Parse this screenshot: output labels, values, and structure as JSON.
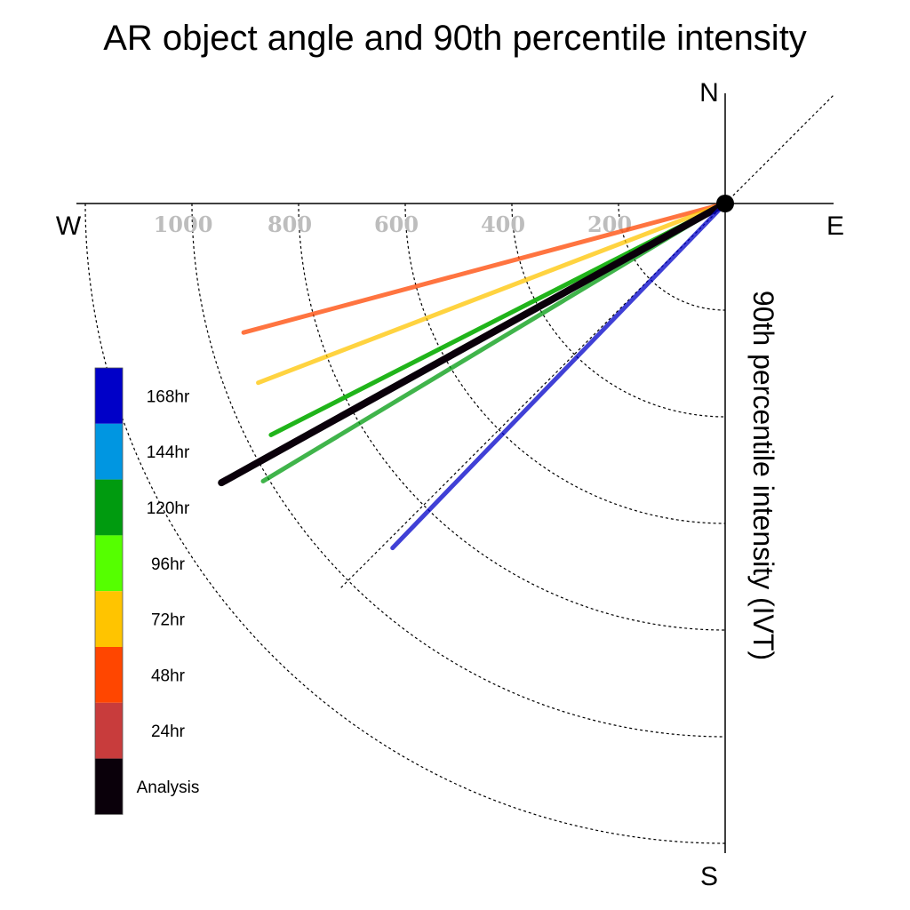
{
  "chart_data": {
    "type": "polar-vector",
    "title": "AR object angle and 90th percentile intensity",
    "radial_label": "90th percentile intensity (IVT)",
    "compass": {
      "north": "N",
      "south": "S",
      "east": "E",
      "west": "W"
    },
    "radial_ticks": [
      200,
      400,
      600,
      800,
      1000
    ],
    "radial_tick_labels": [
      "200",
      "400",
      "600",
      "800",
      "1000"
    ],
    "rmax": 1200,
    "grid": true,
    "reference_angle_deg": 45,
    "legend": {
      "placement": "left",
      "entries": [
        {
          "label": "168hr",
          "color": "#0000c8"
        },
        {
          "label": "144hr",
          "color": "#0096e1"
        },
        {
          "label": "120hr",
          "color": "#009b0f"
        },
        {
          "label": "96hr",
          "color": "#55ff00"
        },
        {
          "label": "72hr",
          "color": "#ffc400"
        },
        {
          "label": "48hr",
          "color": "#ff4600"
        },
        {
          "label": "24hr",
          "color": "#c83c3c"
        },
        {
          "label": "Analysis",
          "color": "#0a000a"
        }
      ]
    },
    "series": [
      {
        "name": "48hr",
        "color": "#ff4600",
        "angle_deg": 255,
        "intensity": 935
      },
      {
        "name": "72hr",
        "color": "#ffc400",
        "angle_deg": 249,
        "intensity": 938
      },
      {
        "name": "96hr",
        "color": "#55ff00",
        "angle_deg": 243,
        "intensity": 956
      },
      {
        "name": "120hr",
        "color": "#009b0f",
        "angle_deg": 243,
        "intensity": 956
      },
      {
        "name": "120hr",
        "color": "#009b0f",
        "angle_deg": 239,
        "intensity": 1011
      },
      {
        "name": "24hr",
        "color": "#c83c3c",
        "angle_deg": 241,
        "intensity": 1078
      },
      {
        "name": "Analysis",
        "color": "#0a000a",
        "angle_deg": 241,
        "intensity": 1080
      },
      {
        "name": "168hr",
        "color": "#0000c8",
        "angle_deg": 224,
        "intensity": 898
      }
    ]
  }
}
